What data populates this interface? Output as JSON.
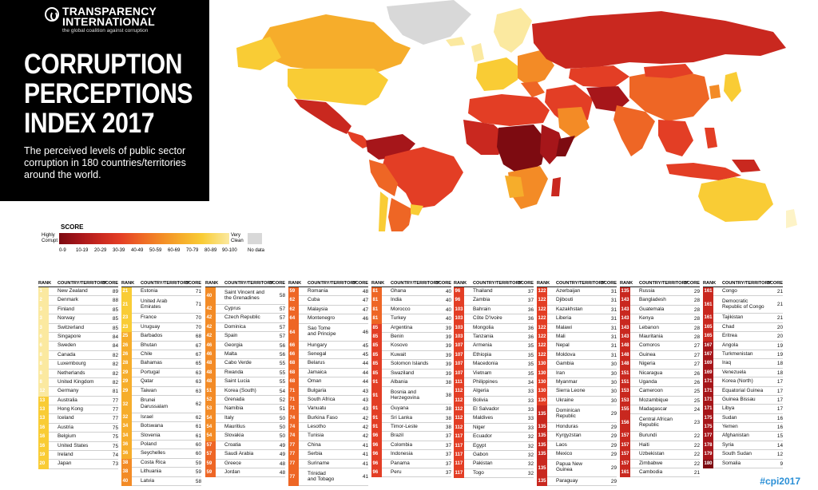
{
  "header": {
    "org_name": "TRANSPARENCY\nINTERNATIONAL",
    "tagline": "the global coalition against corruption",
    "title": "CORRUPTION\nPERCEPTIONS\nINDEX 2017",
    "subtitle": "The perceived levels of public sector corruption in 180 countries/territories around the world."
  },
  "legend": {
    "title": "SCORE",
    "highly_corrupt": "Highly\nCorrupt",
    "very_clean": "Very\nClean",
    "no_data": "No data",
    "ticks": [
      "0-9",
      "10-19",
      "20-29",
      "30-39",
      "40-49",
      "50-59",
      "60-69",
      "70-79",
      "80-89",
      "90-100"
    ]
  },
  "colors": {
    "bands": [
      "#7d0b11",
      "#a6161a",
      "#c9281f",
      "#e33e25",
      "#ee6625",
      "#f38b26",
      "#f6ad2b",
      "#f9cc35",
      "#fbe9a0",
      "#fdf3c7"
    ],
    "no_data": "#d8d8d8"
  },
  "table_headers": {
    "rank": "RANK",
    "country": "COUNTRY/TERRITORY",
    "score": "SCORE"
  },
  "hashtag": "#cpi2017",
  "columns": [
    [
      [
        "1",
        "New Zealand",
        "89"
      ],
      [
        "2",
        "Denmark",
        "88"
      ],
      [
        "3",
        "Finland",
        "85"
      ],
      [
        "3",
        "Norway",
        "85"
      ],
      [
        "3",
        "Switzerland",
        "85"
      ],
      [
        "6",
        "Singapore",
        "84"
      ],
      [
        "6",
        "Sweden",
        "84"
      ],
      [
        "8",
        "Canada",
        "82"
      ],
      [
        "8",
        "Luxembourg",
        "82"
      ],
      [
        "8",
        "Netherlands",
        "82"
      ],
      [
        "8",
        "United Kingdom",
        "82"
      ],
      [
        "12",
        "Germany",
        "81"
      ],
      [
        "13",
        "Australia",
        "77"
      ],
      [
        "13",
        "Hong Kong",
        "77"
      ],
      [
        "13",
        "Iceland",
        "77"
      ],
      [
        "16",
        "Austria",
        "75"
      ],
      [
        "16",
        "Belgium",
        "75"
      ],
      [
        "16",
        "United States",
        "75"
      ],
      [
        "19",
        "Ireland",
        "74"
      ],
      [
        "20",
        "Japan",
        "73"
      ]
    ],
    [
      [
        "21",
        "Estonia",
        "71"
      ],
      [
        "21",
        "United Arab\nEmirates",
        "71"
      ],
      [
        "23",
        "France",
        "70"
      ],
      [
        "23",
        "Uruguay",
        "70"
      ],
      [
        "25",
        "Barbados",
        "68"
      ],
      [
        "26",
        "Bhutan",
        "67"
      ],
      [
        "26",
        "Chile",
        "67"
      ],
      [
        "28",
        "Bahamas",
        "65"
      ],
      [
        "29",
        "Portugal",
        "63"
      ],
      [
        "29",
        "Qatar",
        "63"
      ],
      [
        "29",
        "Taiwan",
        "63"
      ],
      [
        "32",
        "Brunei\nDarussalam",
        "62"
      ],
      [
        "32",
        "Israel",
        "62"
      ],
      [
        "34",
        "Botswana",
        "61"
      ],
      [
        "34",
        "Slovenia",
        "61"
      ],
      [
        "36",
        "Poland",
        "60"
      ],
      [
        "36",
        "Seychelles",
        "60"
      ],
      [
        "38",
        "Costa Rica",
        "59"
      ],
      [
        "38",
        "Lithuania",
        "59"
      ],
      [
        "40",
        "Latvia",
        "58"
      ]
    ],
    [
      [
        "40",
        "Saint Vincent and\nthe Grenadines",
        "58"
      ],
      [
        "42",
        "Cyprus",
        "57"
      ],
      [
        "42",
        "Czech Republic",
        "57"
      ],
      [
        "42",
        "Dominica",
        "57"
      ],
      [
        "42",
        "Spain",
        "57"
      ],
      [
        "46",
        "Georgia",
        "56"
      ],
      [
        "46",
        "Malta",
        "56"
      ],
      [
        "48",
        "Cabo Verde",
        "55"
      ],
      [
        "48",
        "Rwanda",
        "55"
      ],
      [
        "48",
        "Saint Lucia",
        "55"
      ],
      [
        "51",
        "Korea (South)",
        "54"
      ],
      [
        "52",
        "Grenada",
        "52"
      ],
      [
        "53",
        "Namibia",
        "51"
      ],
      [
        "54",
        "Italy",
        "50"
      ],
      [
        "54",
        "Mauritius",
        "50"
      ],
      [
        "54",
        "Slovakia",
        "50"
      ],
      [
        "57",
        "Croatia",
        "49"
      ],
      [
        "57",
        "Saudi Arabia",
        "49"
      ],
      [
        "59",
        "Greece",
        "48"
      ],
      [
        "59",
        "Jordan",
        "48"
      ]
    ],
    [
      [
        "59",
        "Romania",
        "48"
      ],
      [
        "62",
        "Cuba",
        "47"
      ],
      [
        "62",
        "Malaysia",
        "47"
      ],
      [
        "64",
        "Montenegro",
        "46"
      ],
      [
        "64",
        "Sao Tome\nand Principe",
        "46"
      ],
      [
        "66",
        "Hungary",
        "45"
      ],
      [
        "66",
        "Senegal",
        "45"
      ],
      [
        "68",
        "Belarus",
        "44"
      ],
      [
        "68",
        "Jamaica",
        "44"
      ],
      [
        "68",
        "Oman",
        "44"
      ],
      [
        "71",
        "Bulgaria",
        "43"
      ],
      [
        "71",
        "South Africa",
        "43"
      ],
      [
        "71",
        "Vanuatu",
        "43"
      ],
      [
        "74",
        "Burkina Faso",
        "42"
      ],
      [
        "74",
        "Lesotho",
        "42"
      ],
      [
        "74",
        "Tunisia",
        "42"
      ],
      [
        "77",
        "China",
        "41"
      ],
      [
        "77",
        "Serbia",
        "41"
      ],
      [
        "77",
        "Suriname",
        "41"
      ],
      [
        "77",
        "Trinidad\nand Tobago",
        "41"
      ]
    ],
    [
      [
        "81",
        "Ghana",
        "40"
      ],
      [
        "81",
        "India",
        "40"
      ],
      [
        "81",
        "Morocco",
        "40"
      ],
      [
        "81",
        "Turkey",
        "40"
      ],
      [
        "85",
        "Argentina",
        "39"
      ],
      [
        "85",
        "Benin",
        "39"
      ],
      [
        "85",
        "Kosovo",
        "39"
      ],
      [
        "85",
        "Kuwait",
        "39"
      ],
      [
        "85",
        "Solomon Islands",
        "39"
      ],
      [
        "85",
        "Swaziland",
        "39"
      ],
      [
        "91",
        "Albania",
        "38"
      ],
      [
        "91",
        "Bosnia and\nHerzegovina",
        "38"
      ],
      [
        "91",
        "Guyana",
        "38"
      ],
      [
        "91",
        "Sri Lanka",
        "38"
      ],
      [
        "91",
        "Timor-Leste",
        "38"
      ],
      [
        "96",
        "Brazil",
        "37"
      ],
      [
        "96",
        "Colombia",
        "37"
      ],
      [
        "96",
        "Indonesia",
        "37"
      ],
      [
        "96",
        "Panama",
        "37"
      ],
      [
        "96",
        "Peru",
        "37"
      ]
    ],
    [
      [
        "96",
        "Thailand",
        "37"
      ],
      [
        "96",
        "Zambia",
        "37"
      ],
      [
        "103",
        "Bahrain",
        "36"
      ],
      [
        "103",
        "Côte D'Ivoire",
        "36"
      ],
      [
        "103",
        "Mongolia",
        "36"
      ],
      [
        "103",
        "Tanzania",
        "36"
      ],
      [
        "107",
        "Armenia",
        "35"
      ],
      [
        "107",
        "Ethiopia",
        "35"
      ],
      [
        "107",
        "Macedonia",
        "35"
      ],
      [
        "107",
        "Vietnam",
        "35"
      ],
      [
        "111",
        "Philippines",
        "34"
      ],
      [
        "112",
        "Algeria",
        "33"
      ],
      [
        "112",
        "Bolivia",
        "33"
      ],
      [
        "112",
        "El Salvador",
        "33"
      ],
      [
        "112",
        "Maldives",
        "33"
      ],
      [
        "112",
        "Niger",
        "33"
      ],
      [
        "117",
        "Ecuador",
        "32"
      ],
      [
        "117",
        "Egypt",
        "32"
      ],
      [
        "117",
        "Gabon",
        "32"
      ],
      [
        "117",
        "Pakistan",
        "32"
      ],
      [
        "117",
        "Togo",
        "32"
      ]
    ],
    [
      [
        "122",
        "Azerbaijan",
        "31"
      ],
      [
        "122",
        "Djibouti",
        "31"
      ],
      [
        "122",
        "Kazakhstan",
        "31"
      ],
      [
        "122",
        "Liberia",
        "31"
      ],
      [
        "122",
        "Malawi",
        "31"
      ],
      [
        "122",
        "Mali",
        "31"
      ],
      [
        "122",
        "Nepal",
        "31"
      ],
      [
        "122",
        "Moldova",
        "31"
      ],
      [
        "130",
        "Gambia",
        "30"
      ],
      [
        "130",
        "Iran",
        "30"
      ],
      [
        "130",
        "Myanmar",
        "30"
      ],
      [
        "130",
        "Sierra Leone",
        "30"
      ],
      [
        "130",
        "Ukraine",
        "30"
      ],
      [
        "135",
        "Dominican\nRepublic",
        "29"
      ],
      [
        "135",
        "Honduras",
        "29"
      ],
      [
        "135",
        "Kyrgyzstan",
        "29"
      ],
      [
        "135",
        "Laos",
        "29"
      ],
      [
        "135",
        "Mexico",
        "29"
      ],
      [
        "135",
        "Papua New\nGuinea",
        "29"
      ],
      [
        "135",
        "Paraguay",
        "29"
      ]
    ],
    [
      [
        "135",
        "Russia",
        "29"
      ],
      [
        "143",
        "Bangladesh",
        "28"
      ],
      [
        "143",
        "Guatemala",
        "28"
      ],
      [
        "143",
        "Kenya",
        "28"
      ],
      [
        "143",
        "Lebanon",
        "28"
      ],
      [
        "143",
        "Mauritania",
        "28"
      ],
      [
        "148",
        "Comoros",
        "27"
      ],
      [
        "148",
        "Guinea",
        "27"
      ],
      [
        "148",
        "Nigeria",
        "27"
      ],
      [
        "151",
        "Nicaragua",
        "26"
      ],
      [
        "151",
        "Uganda",
        "26"
      ],
      [
        "153",
        "Cameroon",
        "25"
      ],
      [
        "153",
        "Mozambique",
        "25"
      ],
      [
        "155",
        "Madagascar",
        "24"
      ],
      [
        "156",
        "Central African\nRepublic",
        "23"
      ],
      [
        "157",
        "Burundi",
        "22"
      ],
      [
        "157",
        "Haiti",
        "22"
      ],
      [
        "157",
        "Uzbekistan",
        "22"
      ],
      [
        "157",
        "Zimbabwe",
        "22"
      ],
      [
        "161",
        "Cambodia",
        "21"
      ]
    ],
    [
      [
        "161",
        "Congo",
        "21"
      ],
      [
        "161",
        "Democratic\nRepublic of Congo",
        "21"
      ],
      [
        "161",
        "Tajikistan",
        "21"
      ],
      [
        "165",
        "Chad",
        "20"
      ],
      [
        "165",
        "Eritrea",
        "20"
      ],
      [
        "167",
        "Angola",
        "19"
      ],
      [
        "167",
        "Turkmenistan",
        "19"
      ],
      [
        "169",
        "Iraq",
        "18"
      ],
      [
        "169",
        "Venezuela",
        "18"
      ],
      [
        "171",
        "Korea (North)",
        "17"
      ],
      [
        "171",
        "Equatorial Guinea",
        "17"
      ],
      [
        "171",
        "Guinea Bissau",
        "17"
      ],
      [
        "171",
        "Libya",
        "17"
      ],
      [
        "175",
        "Sudan",
        "16"
      ],
      [
        "175",
        "Yemen",
        "16"
      ],
      [
        "177",
        "Afghanistan",
        "15"
      ],
      [
        "178",
        "Syria",
        "14"
      ],
      [
        "179",
        "South Sudan",
        "12"
      ],
      [
        "180",
        "Somalia",
        "9"
      ]
    ]
  ]
}
